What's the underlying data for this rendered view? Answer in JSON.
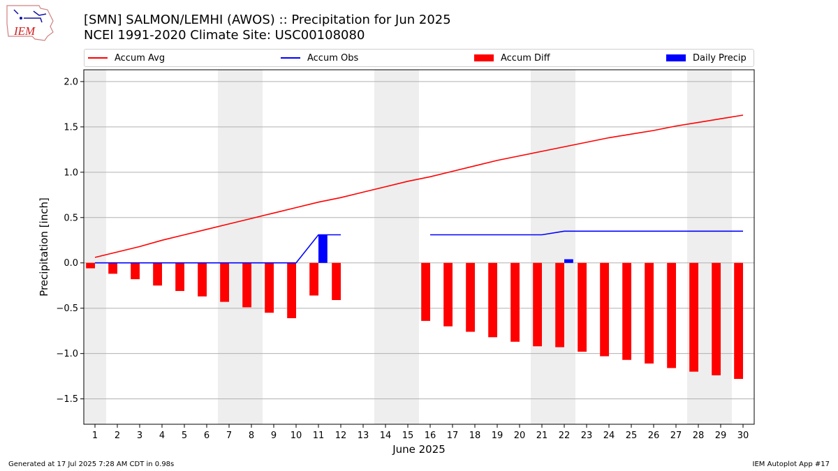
{
  "header": {
    "title_line1": "[SMN] SALMON/LEMHI (AWOS) :: Precipitation for Jun 2025",
    "title_line2": "NCEI 1991-2020 Climate Site: USC00108080",
    "logo_text": "IEM"
  },
  "legend": {
    "placement": "top",
    "items": [
      {
        "label": "Accum Avg",
        "kind": "line",
        "color": "#ff0000"
      },
      {
        "label": "Accum Obs",
        "kind": "line",
        "color": "#0000ff"
      },
      {
        "label": "Accum Diff",
        "kind": "patch",
        "color": "#ff0000"
      },
      {
        "label": "Daily Precip",
        "kind": "patch",
        "color": "#0000ff"
      }
    ]
  },
  "footer": {
    "left": "Generated at 17 Jul 2025 7:28 AM CDT in 0.98s",
    "right": "IEM Autoplot App #17"
  },
  "colors": {
    "avg": "#ff0000",
    "obs": "#0000ff",
    "diff": "#ff0000",
    "daily": "#0000ff",
    "weekend_shade": "#eeeeee",
    "grid": "#b0b0b0"
  },
  "chart_data": {
    "type": "bar",
    "xlabel": "June 2025",
    "ylabel": "Precipitation [inch]",
    "ylim": [
      -1.78,
      2.13
    ],
    "xlim": [
      0.5,
      30.5
    ],
    "grid": "horizontal",
    "yticks": [
      2.0,
      1.5,
      1.0,
      0.5,
      0.0,
      -0.5,
      -1.0,
      -1.5
    ],
    "ytick_labels": [
      "2.0",
      "1.5",
      "1.0",
      "0.5",
      "0.0",
      "−0.5",
      "−1.0",
      "−1.5"
    ],
    "x": [
      1,
      2,
      3,
      4,
      5,
      6,
      7,
      8,
      9,
      10,
      11,
      12,
      13,
      14,
      15,
      16,
      17,
      18,
      19,
      20,
      21,
      22,
      23,
      24,
      25,
      26,
      27,
      28,
      29,
      30
    ],
    "xtick_labels": [
      "1",
      "2",
      "3",
      "4",
      "5",
      "6",
      "7",
      "8",
      "9",
      "10",
      "11",
      "12",
      "13",
      "14",
      "15",
      "16",
      "17",
      "18",
      "19",
      "20",
      "21",
      "22",
      "23",
      "24",
      "25",
      "26",
      "27",
      "28",
      "29",
      "30"
    ],
    "shaded_days": [
      [
        0.5,
        1.5
      ],
      [
        6.5,
        8.5
      ],
      [
        13.5,
        15.5
      ],
      [
        20.5,
        22.5
      ],
      [
        27.5,
        29.5
      ]
    ],
    "series": [
      {
        "name": "Accum Avg",
        "type": "line",
        "values": [
          0.06,
          0.12,
          0.18,
          0.25,
          0.31,
          0.37,
          0.43,
          0.49,
          0.55,
          0.61,
          0.67,
          0.72,
          0.78,
          0.84,
          0.9,
          0.95,
          1.01,
          1.07,
          1.13,
          1.18,
          1.23,
          1.28,
          1.33,
          1.38,
          1.42,
          1.46,
          1.51,
          1.55,
          1.59,
          1.63
        ]
      },
      {
        "name": "Accum Obs",
        "type": "line",
        "values": [
          0.0,
          0.0,
          0.0,
          0.0,
          0.0,
          0.0,
          0.0,
          0.0,
          0.0,
          0.0,
          0.31,
          0.31,
          null,
          null,
          null,
          0.31,
          0.31,
          0.31,
          0.31,
          0.31,
          0.31,
          0.35,
          0.35,
          0.35,
          0.35,
          0.35,
          0.35,
          0.35,
          0.35,
          0.35
        ]
      },
      {
        "name": "Accum Diff",
        "type": "bar",
        "values": [
          -0.06,
          -0.12,
          -0.18,
          -0.25,
          -0.31,
          -0.37,
          -0.43,
          -0.49,
          -0.55,
          -0.61,
          -0.36,
          -0.41,
          null,
          null,
          null,
          -0.64,
          -0.7,
          -0.76,
          -0.82,
          -0.87,
          -0.92,
          -0.93,
          -0.98,
          -1.03,
          -1.07,
          -1.11,
          -1.16,
          -1.2,
          -1.24,
          -1.28
        ]
      },
      {
        "name": "Daily Precip",
        "type": "bar",
        "values": [
          0,
          0,
          0,
          0,
          0,
          0,
          0,
          0,
          0,
          0,
          0.31,
          0,
          0,
          0,
          0,
          0,
          0,
          0,
          0,
          0,
          0,
          0.04,
          0,
          0,
          0,
          0,
          0,
          0,
          0,
          0
        ]
      }
    ]
  }
}
